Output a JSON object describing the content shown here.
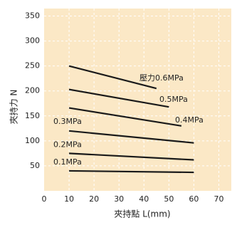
{
  "chart_data": {
    "type": "line",
    "xlabel": "夾持點 L(mm)",
    "ylabel": "夾持力 N",
    "xlim": [
      0,
      75
    ],
    "ylim": [
      0,
      365
    ],
    "xticks": [
      0,
      10,
      20,
      30,
      40,
      50,
      60,
      70
    ],
    "yticks": [
      50,
      100,
      150,
      200,
      250,
      300,
      350
    ],
    "grid": true,
    "background": "#fbe8c6",
    "color": "#1a1a1a",
    "series": [
      {
        "name": "壓力0.6MPa",
        "x": [
          10,
          45
        ],
        "values": [
          250,
          205
        ]
      },
      {
        "name": "0.5MPa",
        "x": [
          10,
          50
        ],
        "values": [
          203,
          168
        ]
      },
      {
        "name": "0.4MPa",
        "x": [
          10,
          55
        ],
        "values": [
          166,
          130
        ]
      },
      {
        "name": "0.3MPa",
        "x": [
          10,
          60
        ],
        "values": [
          120,
          96
        ]
      },
      {
        "name": "0.2MPa",
        "x": [
          10,
          60
        ],
        "values": [
          75,
          62
        ]
      },
      {
        "name": "0.1MPa",
        "x": [
          10,
          60
        ],
        "values": [
          40,
          37
        ]
      }
    ]
  }
}
